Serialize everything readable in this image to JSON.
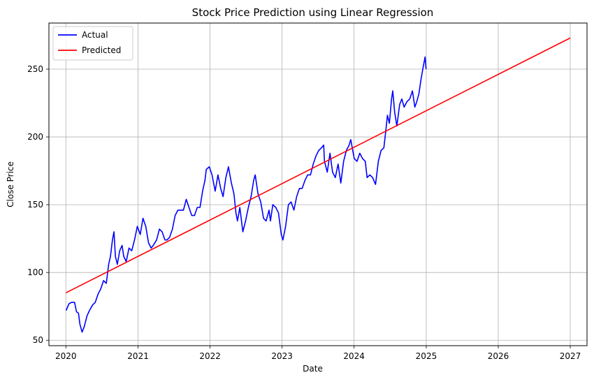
{
  "chart_data": {
    "type": "line",
    "title": "Stock Price Prediction using Linear Regression",
    "xlabel": "Date",
    "ylabel": "Close Price",
    "xlim": [
      "2019-10-07",
      "2027-03-27"
    ],
    "ylim": [
      46,
      284
    ],
    "x_ticks": [
      "2020",
      "2021",
      "2022",
      "2023",
      "2024",
      "2025",
      "2026",
      "2027"
    ],
    "y_ticks": [
      50,
      100,
      150,
      200,
      250
    ],
    "grid": true,
    "legend_position": "top-left",
    "colors": {
      "actual": "#0000ff",
      "predicted": "#ff0000",
      "grid": "#b0b0b0"
    },
    "series": [
      {
        "name": "Actual",
        "color": "#0000ff",
        "points": [
          [
            "2020-01-02",
            72
          ],
          [
            "2020-01-17",
            77
          ],
          [
            "2020-01-31",
            78
          ],
          [
            "2020-02-14",
            78
          ],
          [
            "2020-02-24",
            71
          ],
          [
            "2020-03-05",
            70
          ],
          [
            "2020-03-12",
            62
          ],
          [
            "2020-03-23",
            56
          ],
          [
            "2020-04-03",
            60
          ],
          [
            "2020-04-17",
            68
          ],
          [
            "2020-04-30",
            72
          ],
          [
            "2020-05-15",
            76
          ],
          [
            "2020-05-29",
            78
          ],
          [
            "2020-06-12",
            84
          ],
          [
            "2020-06-26",
            88
          ],
          [
            "2020-07-10",
            94
          ],
          [
            "2020-07-24",
            92
          ],
          [
            "2020-08-05",
            106
          ],
          [
            "2020-08-14",
            112
          ],
          [
            "2020-08-24",
            124
          ],
          [
            "2020-09-01",
            130
          ],
          [
            "2020-09-08",
            112
          ],
          [
            "2020-09-18",
            106
          ],
          [
            "2020-09-30",
            116
          ],
          [
            "2020-10-12",
            120
          ],
          [
            "2020-10-20",
            112
          ],
          [
            "2020-11-02",
            108
          ],
          [
            "2020-11-16",
            118
          ],
          [
            "2020-11-30",
            116
          ],
          [
            "2020-12-14",
            124
          ],
          [
            "2020-12-28",
            134
          ],
          [
            "2021-01-12",
            128
          ],
          [
            "2021-01-26",
            140
          ],
          [
            "2021-02-09",
            134
          ],
          [
            "2021-02-23",
            122
          ],
          [
            "2021-03-08",
            118
          ],
          [
            "2021-03-19",
            120
          ],
          [
            "2021-04-05",
            124
          ],
          [
            "2021-04-19",
            132
          ],
          [
            "2021-05-03",
            130
          ],
          [
            "2021-05-17",
            124
          ],
          [
            "2021-05-28",
            124
          ],
          [
            "2021-06-10",
            126
          ],
          [
            "2021-06-24",
            132
          ],
          [
            "2021-07-08",
            142
          ],
          [
            "2021-07-22",
            146
          ],
          [
            "2021-08-05",
            146
          ],
          [
            "2021-08-19",
            146
          ],
          [
            "2021-09-02",
            154
          ],
          [
            "2021-09-16",
            148
          ],
          [
            "2021-09-30",
            142
          ],
          [
            "2021-10-14",
            142
          ],
          [
            "2021-10-28",
            148
          ],
          [
            "2021-11-11",
            148
          ],
          [
            "2021-11-24",
            160
          ],
          [
            "2021-12-06",
            168
          ],
          [
            "2021-12-13",
            176
          ],
          [
            "2021-12-28",
            178
          ],
          [
            "2022-01-11",
            172
          ],
          [
            "2022-01-27",
            160
          ],
          [
            "2022-02-10",
            172
          ],
          [
            "2022-02-24",
            162
          ],
          [
            "2022-03-08",
            156
          ],
          [
            "2022-03-22",
            170
          ],
          [
            "2022-04-04",
            178
          ],
          [
            "2022-04-19",
            166
          ],
          [
            "2022-05-02",
            158
          ],
          [
            "2022-05-12",
            144
          ],
          [
            "2022-05-20",
            138
          ],
          [
            "2022-06-01",
            148
          ],
          [
            "2022-06-16",
            130
          ],
          [
            "2022-06-30",
            138
          ],
          [
            "2022-07-14",
            148
          ],
          [
            "2022-07-28",
            156
          ],
          [
            "2022-08-10",
            168
          ],
          [
            "2022-08-18",
            172
          ],
          [
            "2022-09-01",
            158
          ],
          [
            "2022-09-15",
            152
          ],
          [
            "2022-09-29",
            140
          ],
          [
            "2022-10-12",
            138
          ],
          [
            "2022-10-27",
            146
          ],
          [
            "2022-11-03",
            138
          ],
          [
            "2022-11-15",
            150
          ],
          [
            "2022-11-30",
            148
          ],
          [
            "2022-12-14",
            144
          ],
          [
            "2022-12-28",
            128
          ],
          [
            "2023-01-05",
            124
          ],
          [
            "2023-01-19",
            134
          ],
          [
            "2023-02-02",
            150
          ],
          [
            "2023-02-16",
            152
          ],
          [
            "2023-03-02",
            146
          ],
          [
            "2023-03-16",
            156
          ],
          [
            "2023-03-30",
            162
          ],
          [
            "2023-04-13",
            162
          ],
          [
            "2023-04-27",
            168
          ],
          [
            "2023-05-11",
            172
          ],
          [
            "2023-05-25",
            172
          ],
          [
            "2023-06-08",
            180
          ],
          [
            "2023-06-22",
            186
          ],
          [
            "2023-07-06",
            190
          ],
          [
            "2023-07-20",
            192
          ],
          [
            "2023-07-31",
            194
          ],
          [
            "2023-08-04",
            182
          ],
          [
            "2023-08-18",
            174
          ],
          [
            "2023-09-01",
            188
          ],
          [
            "2023-09-14",
            174
          ],
          [
            "2023-09-28",
            170
          ],
          [
            "2023-10-12",
            180
          ],
          [
            "2023-10-26",
            166
          ],
          [
            "2023-11-09",
            182
          ],
          [
            "2023-11-23",
            190
          ],
          [
            "2023-12-07",
            194
          ],
          [
            "2023-12-15",
            198
          ],
          [
            "2024-01-02",
            184
          ],
          [
            "2024-01-16",
            182
          ],
          [
            "2024-01-30",
            188
          ],
          [
            "2024-02-13",
            184
          ],
          [
            "2024-02-27",
            182
          ],
          [
            "2024-03-07",
            170
          ],
          [
            "2024-03-21",
            172
          ],
          [
            "2024-04-04",
            170
          ],
          [
            "2024-04-19",
            165
          ],
          [
            "2024-05-03",
            182
          ],
          [
            "2024-05-17",
            190
          ],
          [
            "2024-05-31",
            192
          ],
          [
            "2024-06-11",
            206
          ],
          [
            "2024-06-18",
            216
          ],
          [
            "2024-06-28",
            210
          ],
          [
            "2024-07-09",
            228
          ],
          [
            "2024-07-15",
            234
          ],
          [
            "2024-07-25",
            218
          ],
          [
            "2024-08-05",
            208
          ],
          [
            "2024-08-19",
            224
          ],
          [
            "2024-08-30",
            228
          ],
          [
            "2024-09-11",
            222
          ],
          [
            "2024-09-25",
            226
          ],
          [
            "2024-10-09",
            228
          ],
          [
            "2024-10-23",
            234
          ],
          [
            "2024-11-04",
            222
          ],
          [
            "2024-11-14",
            226
          ],
          [
            "2024-11-25",
            232
          ],
          [
            "2024-12-05",
            242
          ],
          [
            "2024-12-17",
            252
          ],
          [
            "2024-12-26",
            259
          ],
          [
            "2024-12-31",
            250
          ]
        ]
      },
      {
        "name": "Predicted",
        "color": "#ff0000",
        "points": [
          [
            "2020-01-01",
            85
          ],
          [
            "2027-01-01",
            273
          ]
        ]
      }
    ]
  }
}
